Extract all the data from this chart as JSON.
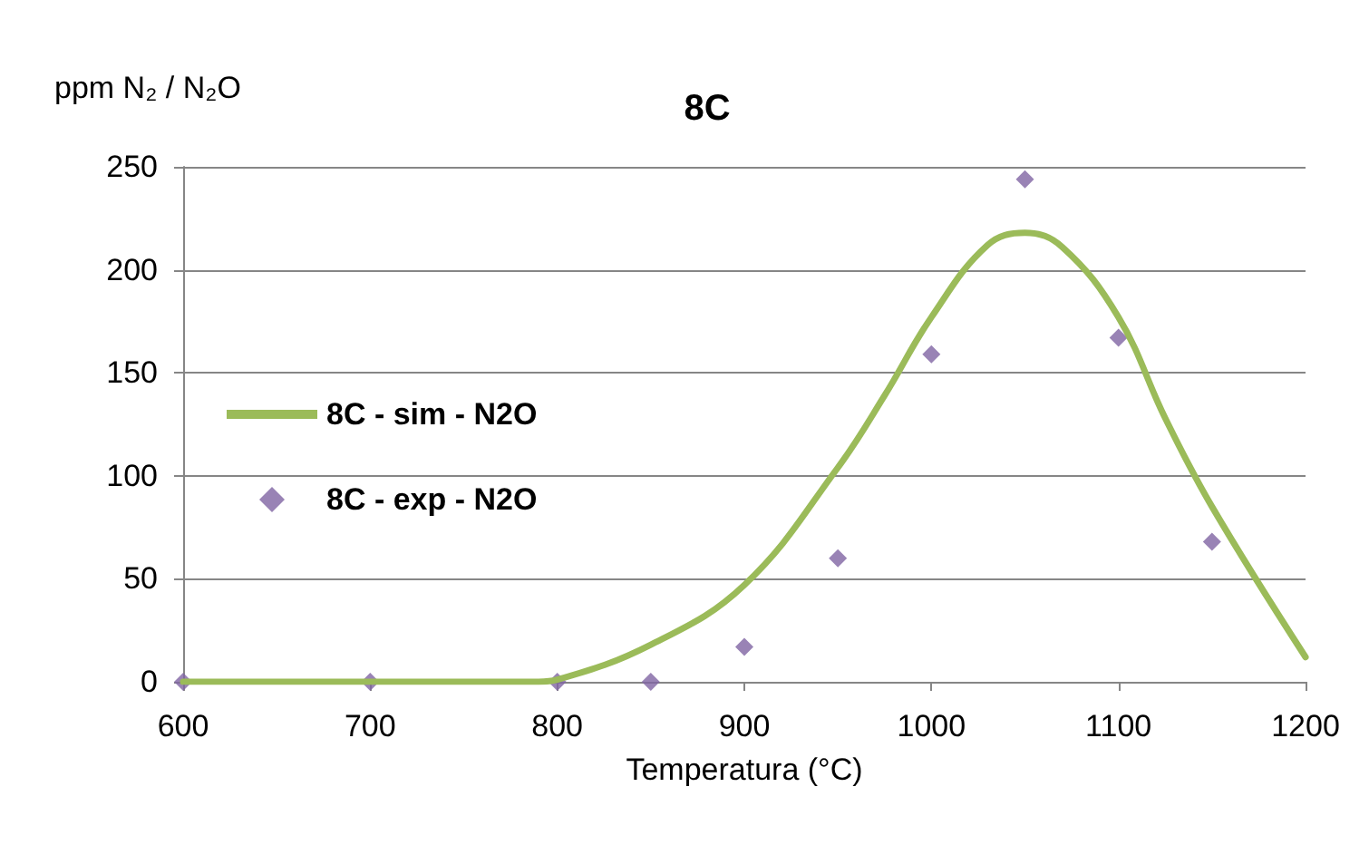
{
  "chart_data": {
    "type": "line",
    "title": "8C",
    "ylabel": "ppm N₂ / N₂O",
    "xlabel": "Temperatura (°C)",
    "xlim": [
      600,
      1200
    ],
    "xticks": [
      600,
      700,
      800,
      900,
      1000,
      1100,
      1200
    ],
    "ylim": [
      0,
      250
    ],
    "yticks": [
      0,
      50,
      100,
      150,
      200,
      250
    ],
    "grid": "y",
    "legend": "left",
    "series": [
      {
        "name": "8C - sim - N2O",
        "color": "#9bbb59",
        "marker": "none",
        "x": [
          600,
          700,
          790,
          800,
          850,
          900,
          950,
          975,
          1000,
          1030,
          1050,
          1070,
          1100,
          1125,
          1150,
          1200
        ],
        "values": [
          0,
          0,
          0,
          1,
          18,
          47,
          104,
          139,
          177,
          212,
          218,
          211,
          177,
          128,
          85,
          12
        ]
      },
      {
        "name": "8C - exp - N2O",
        "type": "scatter",
        "color": "#8064a2",
        "marker": "diamond",
        "x": [
          600,
          700,
          800,
          850,
          900,
          950,
          1000,
          1050,
          1100,
          1150
        ],
        "values": [
          0,
          0,
          0,
          0,
          17,
          60,
          159,
          244,
          167,
          68
        ]
      }
    ]
  }
}
